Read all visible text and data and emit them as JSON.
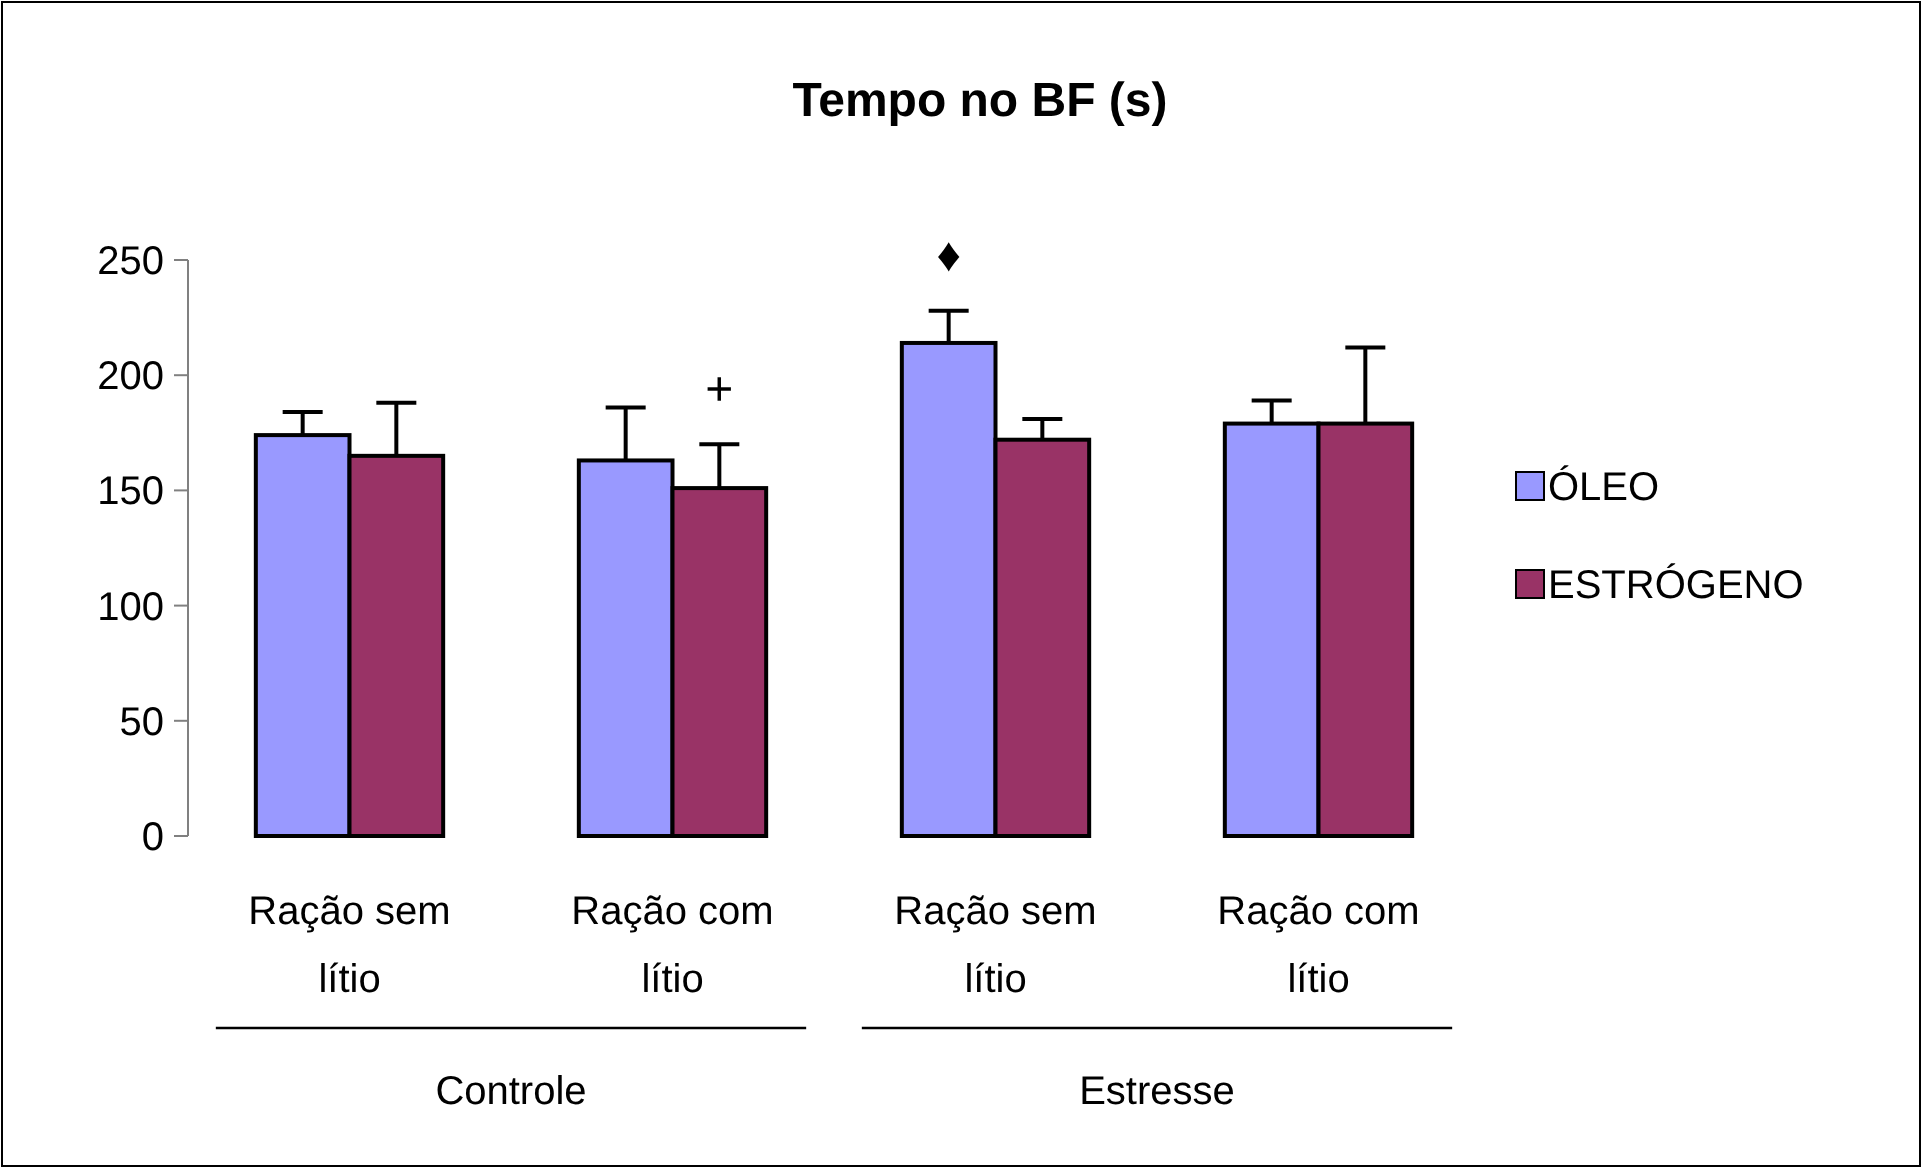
{
  "chart_data": {
    "type": "bar",
    "title": "Tempo no BF (s)",
    "categories": [
      "Ração sem lítio",
      "Ração com lítio",
      "Ração sem lítio",
      "Ração com lítio"
    ],
    "series": [
      {
        "name": "ÓLEO",
        "color": "#9999ff",
        "values": [
          174,
          163,
          214,
          179
        ],
        "errors": [
          10,
          23,
          14,
          10
        ]
      },
      {
        "name": "ESTRÓGENO",
        "color": "#993366",
        "values": [
          165,
          151,
          172,
          179
        ],
        "errors": [
          23,
          19,
          9,
          33
        ]
      }
    ],
    "ylim": [
      0,
      250
    ],
    "yticks": [
      0,
      50,
      100,
      150,
      200,
      250
    ],
    "grid": false,
    "legend": "right",
    "annotations": [
      "+",
      "♦",
      "Controle",
      "Estresse"
    ]
  }
}
